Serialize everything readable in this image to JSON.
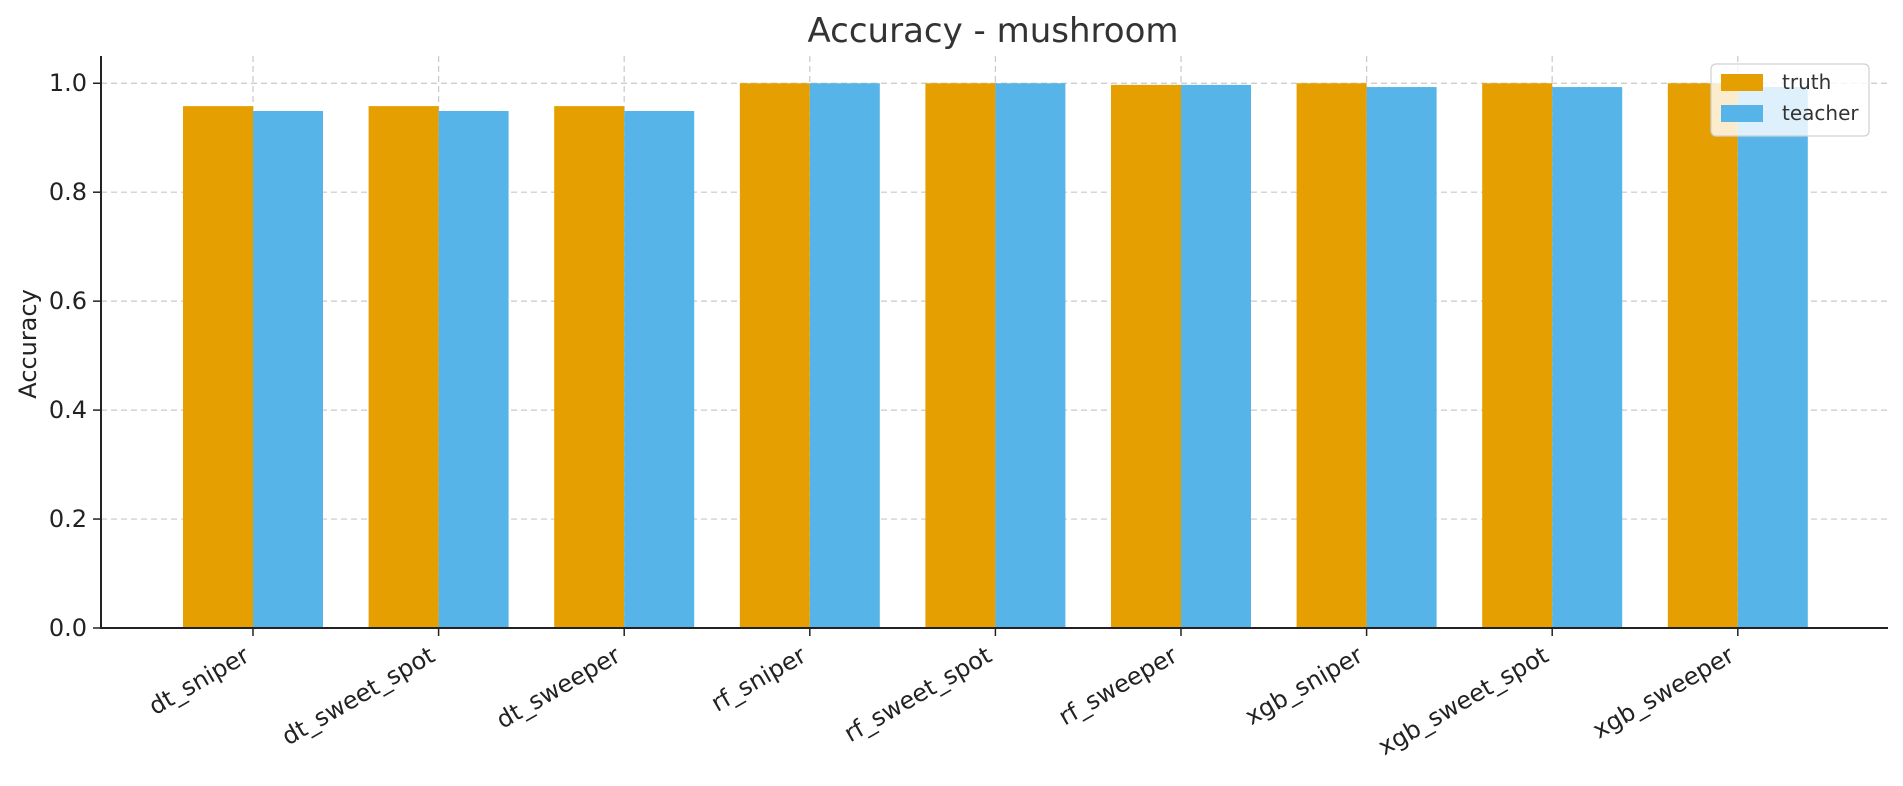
{
  "chart_data": {
    "type": "bar",
    "title": "Accuracy - mushroom",
    "xlabel": "",
    "ylabel": "Accuracy",
    "ylim": [
      0,
      1.05
    ],
    "yticks": [
      0.0,
      0.2,
      0.4,
      0.6,
      0.8,
      1.0
    ],
    "ytick_labels": [
      "0.0",
      "0.2",
      "0.4",
      "0.6",
      "0.8",
      "1.0"
    ],
    "categories": [
      "dt_sniper",
      "dt_sweet_spot",
      "dt_sweeper",
      "rf_sniper",
      "rf_sweet_spot",
      "rf_sweeper",
      "xgb_sniper",
      "xgb_sweet_spot",
      "xgb_sweeper"
    ],
    "series": [
      {
        "name": "truth",
        "color": "#E69F00",
        "values": [
          0.958,
          0.958,
          0.958,
          1.0,
          1.0,
          0.997,
          1.0,
          1.0,
          1.0
        ]
      },
      {
        "name": "teacher",
        "color": "#56B4E9",
        "values": [
          0.949,
          0.949,
          0.949,
          1.0,
          1.0,
          0.997,
          0.993,
          0.993,
          0.993
        ]
      }
    ],
    "grid": true,
    "legend_position": "top-right"
  }
}
